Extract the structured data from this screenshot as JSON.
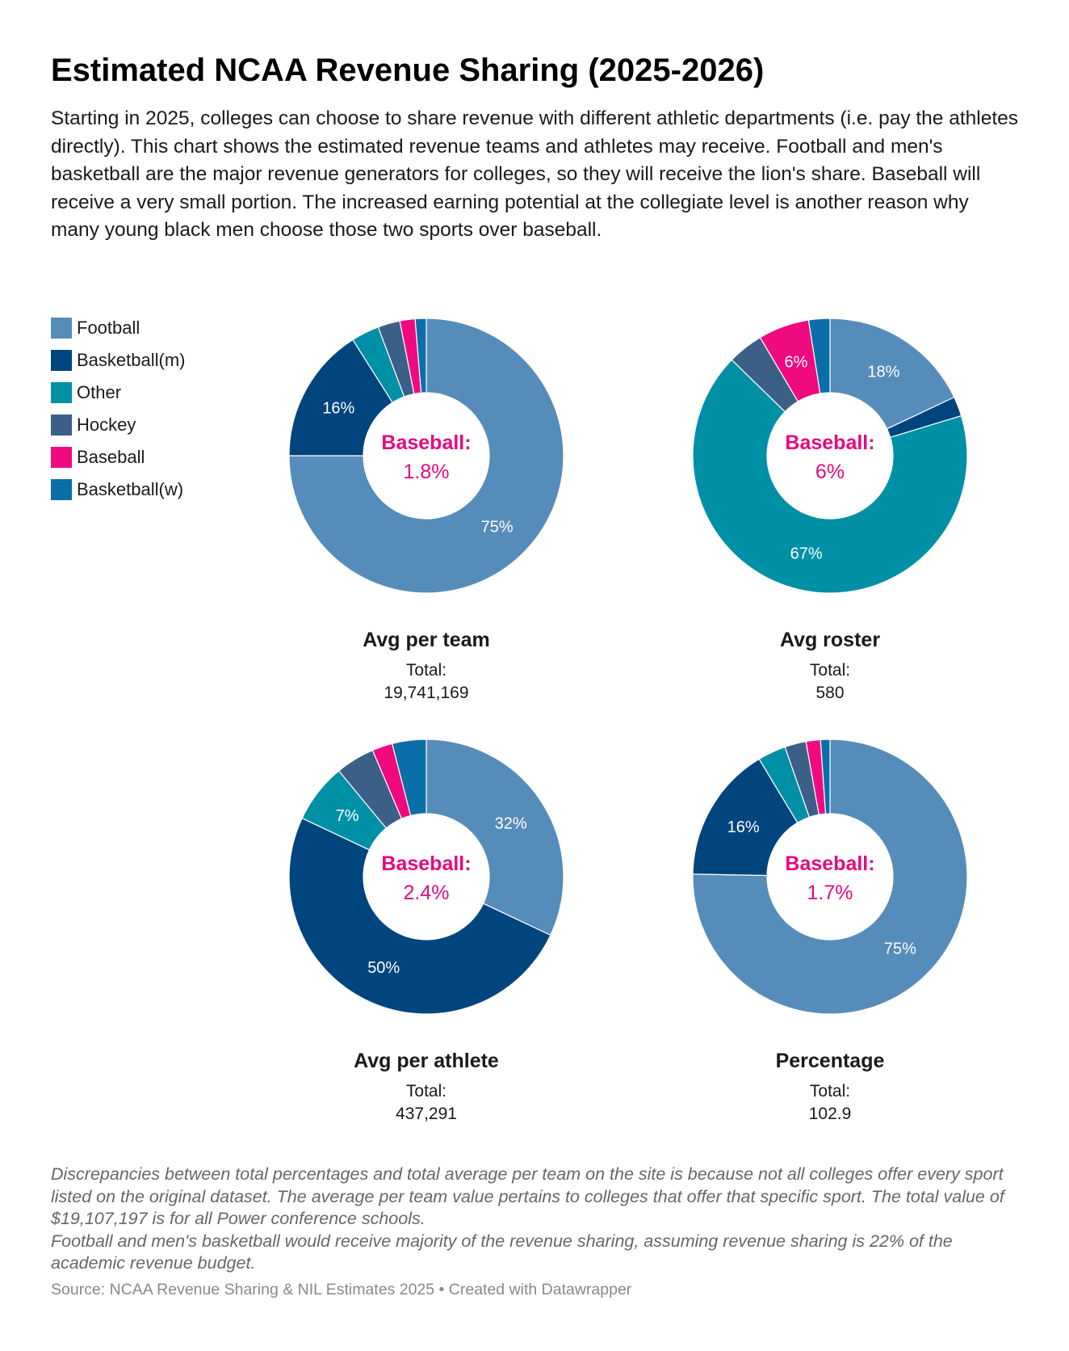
{
  "title": "Estimated NCAA Revenue Sharing (2025-2026)",
  "description": "Starting in 2025, colleges can choose to share revenue with different athletic departments (i.e. pay the athletes directly). This chart shows the estimated revenue teams and athletes may receive. Football and men's basketball are the major revenue generators for colleges, so they will receive the lion's share. Baseball will receive a very small portion. The increased earning potential at the collegiate level is another reason why many young black men choose those two sports over baseball.",
  "legend": [
    {
      "label": "Football",
      "color": "#568cba"
    },
    {
      "label": "Basketball(m)",
      "color": "#00457d"
    },
    {
      "label": "Other",
      "color": "#0090a6"
    },
    {
      "label": "Hockey",
      "color": "#3c5f88"
    },
    {
      "label": "Baseball",
      "color": "#ef0a80"
    },
    {
      "label": "Basketball(w)",
      "color": "#0a6ea8"
    }
  ],
  "chart_data": [
    {
      "type": "pie",
      "title": "Avg per team",
      "total_label": "Total:",
      "total_value": "19,741,169",
      "center_label": "Baseball:",
      "center_value": "1.8%",
      "categories": [
        "Football",
        "Basketball(m)",
        "Other",
        "Hockey",
        "Baseball",
        "Basketball(w)"
      ],
      "values": [
        75,
        16,
        3.3,
        2.6,
        1.8,
        1.3
      ],
      "labels": [
        "75%",
        "16%",
        "",
        "",
        "",
        ""
      ]
    },
    {
      "type": "pie",
      "title": "Avg roster",
      "total_label": "Total:",
      "total_value": "580",
      "center_label": "Baseball:",
      "center_value": "6%",
      "categories": [
        "Football",
        "Basketball(m)",
        "Other",
        "Hockey",
        "Baseball",
        "Basketball(w)"
      ],
      "values": [
        18,
        2.3,
        67,
        4.2,
        6,
        2.5
      ],
      "labels": [
        "18%",
        "",
        "67%",
        "",
        "6%",
        ""
      ]
    },
    {
      "type": "pie",
      "title": "Avg per athlete",
      "total_label": "Total:",
      "total_value": "437,291",
      "center_label": "Baseball:",
      "center_value": "2.4%",
      "categories": [
        "Football",
        "Basketball(m)",
        "Other",
        "Hockey",
        "Baseball",
        "Basketball(w)"
      ],
      "values": [
        32,
        50,
        7,
        4.6,
        2.4,
        4
      ],
      "labels": [
        "32%",
        "50%",
        "7%",
        "",
        "",
        ""
      ]
    },
    {
      "type": "pie",
      "title": "Percentage",
      "total_label": "Total:",
      "total_value": "102.9",
      "center_label": "Baseball:",
      "center_value": "1.7%",
      "categories": [
        "Football",
        "Basketball(m)",
        "Other",
        "Hockey",
        "Baseball",
        "Basketball(w)"
      ],
      "values": [
        75,
        16,
        3.3,
        2.5,
        1.7,
        1.1
      ],
      "labels": [
        "75%",
        "16%",
        "",
        "",
        "",
        ""
      ]
    }
  ],
  "notes": [
    "Discrepancies between total percentages and total average per team on the site is because not all colleges offer every sport listed on the original dataset. The average per team value pertains to colleges that offer that specific sport. The total value of $19,107,197 is for all Power conference schools.",
    "Football and men's basketball would receive majority of the revenue sharing, assuming revenue sharing is 22% of the academic revenue budget."
  ],
  "source": "Source: NCAA Revenue Sharing & NIL Estimates 2025 • Created with Datawrapper",
  "colors": {
    "highlight": "#e5097f",
    "label_text": "#ffffff"
  }
}
